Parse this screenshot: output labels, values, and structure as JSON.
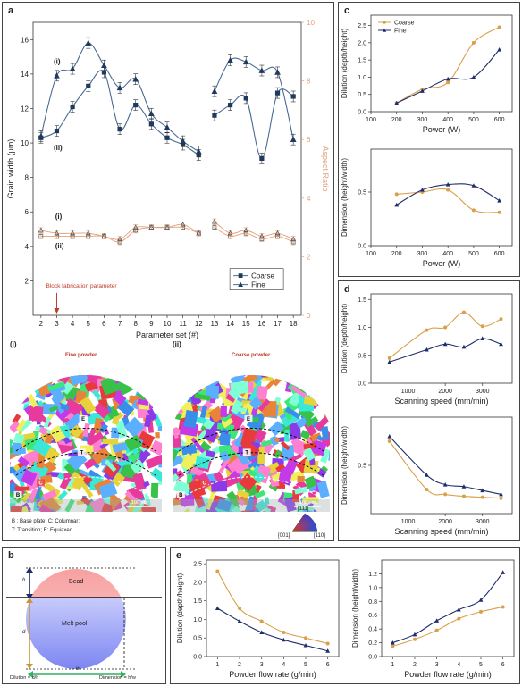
{
  "colors": {
    "coarse": "#d9a04a",
    "fine": "#1f2d6b",
    "right_axis": "#e0a07a",
    "arrow": "#c0392b",
    "powder_title": "#c0392b",
    "bead": "#f29a9a",
    "pool": "#8b93f0",
    "dim_arrow": "#2db35d",
    "depth_arrow": "#c9973a"
  },
  "panels": {
    "a": {
      "label": "a",
      "legend": [
        "Coarse",
        "Fine"
      ],
      "annotation": "Block fabrication parameter",
      "upper_labels": [
        "(i)",
        "(ii)"
      ],
      "lower_labels": [
        "(i)",
        "(ii)"
      ]
    },
    "ebsd": {
      "fine": {
        "label": "(i)",
        "title": "Fine powder",
        "scale": "100 μm",
        "zones": [
          "E",
          "T",
          "C",
          "B"
        ]
      },
      "coarse": {
        "label": "(ii)",
        "title": "Coarse powder",
        "scale": "100 μm",
        "zones": [
          "E",
          "T",
          "C",
          "B"
        ]
      },
      "caption_line1": "B : Base plate; C: Columnar;",
      "caption_line2": "T: Transition; E: Equiaxed",
      "ipf": [
        "[111]",
        "[001]",
        "[110]"
      ]
    },
    "b": {
      "label": "b",
      "bead": "Bead",
      "pool": "Melt pool",
      "h": "h",
      "d": "d",
      "w": "w",
      "dilution": "Dilution = d/h",
      "dimension": "Dimension = h/w"
    },
    "c": {
      "label": "c",
      "legend": [
        "Coarse",
        "Fine"
      ]
    },
    "d": {
      "label": "d"
    },
    "e": {
      "label": "e"
    }
  },
  "chart_data": [
    {
      "id": "a",
      "type": "line",
      "x": [
        2,
        3,
        4,
        5,
        6,
        7,
        8,
        9,
        10,
        11,
        12,
        13,
        14,
        15,
        16,
        17,
        18
      ],
      "xlabel": "Parameter set (#)",
      "ylabel": "Grain width (μm)",
      "y2label": "Aspect Ratio",
      "xlim": [
        1.5,
        18.5
      ],
      "ylim": [
        0,
        17
      ],
      "y2lim": [
        0,
        10
      ],
      "xticks": [
        "2",
        "3",
        "4",
        "5",
        "6",
        "7",
        "8",
        "9",
        "10",
        "11",
        "12",
        "13",
        "14",
        "15",
        "16",
        "17",
        "18"
      ],
      "yticks": [
        2,
        4,
        6,
        8,
        10,
        12,
        14,
        16
      ],
      "y2ticks": [
        0,
        2,
        4,
        6,
        8,
        10
      ],
      "series": [
        {
          "name": "Coarse",
          "axis": "left",
          "values": [
            10.3,
            10.7,
            12.1,
            13.3,
            14.1,
            10.8,
            12.2,
            11.1,
            10.3,
            9.9,
            9.3,
            11.6,
            12.2,
            12.6,
            9.1,
            12.9,
            12.7
          ]
        },
        {
          "name": "Fine",
          "axis": "left",
          "values": [
            10.4,
            13.9,
            14.3,
            15.8,
            14.5,
            13.2,
            13.7,
            11.7,
            10.9,
            10.1,
            9.5,
            13.0,
            14.8,
            14.7,
            14.2,
            14.1,
            10.2
          ]
        },
        {
          "name": "Coarse",
          "axis": "right",
          "values": [
            2.7,
            2.7,
            2.7,
            2.7,
            2.7,
            2.5,
            2.9,
            3.0,
            3.0,
            3.0,
            2.8,
            3.0,
            2.7,
            2.8,
            2.6,
            2.7,
            2.5
          ]
        },
        {
          "name": "Fine",
          "axis": "right",
          "values": [
            2.9,
            2.8,
            2.8,
            2.8,
            2.7,
            2.6,
            3.0,
            3.0,
            3.0,
            3.1,
            2.8,
            3.2,
            2.8,
            2.9,
            2.7,
            2.8,
            2.6
          ]
        }
      ],
      "annotation_x": 3
    },
    {
      "id": "c-top",
      "type": "line",
      "x": [
        200,
        300,
        400,
        500,
        600
      ],
      "xlabel": "Power (W)",
      "ylabel": "Dilution (depth/height)",
      "xlim": [
        100,
        650
      ],
      "ylim": [
        0,
        2.8
      ],
      "xticks": [
        "100",
        "200",
        "300",
        "400",
        "500",
        "600"
      ],
      "yticks": [
        0.0,
        0.5,
        1.0,
        1.5,
        2.0,
        2.5
      ],
      "series": [
        {
          "name": "Coarse",
          "values": [
            0.25,
            0.65,
            0.85,
            2.0,
            2.45
          ]
        },
        {
          "name": "Fine",
          "values": [
            0.25,
            0.6,
            0.95,
            1.0,
            1.8
          ]
        }
      ]
    },
    {
      "id": "c-bottom",
      "type": "line",
      "x": [
        200,
        300,
        400,
        500,
        600
      ],
      "xlabel": "Power (W)",
      "ylabel": "Dimension (height/width)",
      "xlim": [
        100,
        650
      ],
      "ylim": [
        0,
        0.9
      ],
      "xticks": [
        "100",
        "200",
        "300",
        "400",
        "500",
        "600"
      ],
      "yticks": [
        0.0,
        0.5
      ],
      "series": [
        {
          "name": "Coarse",
          "values": [
            0.48,
            0.5,
            0.52,
            0.33,
            0.31
          ]
        },
        {
          "name": "Fine",
          "values": [
            0.38,
            0.52,
            0.57,
            0.56,
            0.42
          ]
        }
      ]
    },
    {
      "id": "d-top",
      "type": "line",
      "x": [
        500,
        1500,
        2000,
        2500,
        3000,
        3500
      ],
      "xlabel": "Scanning speed (mm/min)",
      "ylabel": "Dilution (depth/height)",
      "xlim": [
        0,
        3800
      ],
      "ylim": [
        0,
        1.6
      ],
      "xticks": [
        "1000",
        "2000",
        "3000"
      ],
      "xtickvals": [
        1000,
        2000,
        3000
      ],
      "yticks": [
        0.0,
        0.5,
        1.0,
        1.5
      ],
      "series": [
        {
          "name": "Coarse",
          "values": [
            0.45,
            0.95,
            1.0,
            1.27,
            1.02,
            1.15
          ]
        },
        {
          "name": "Fine",
          "values": [
            0.38,
            0.6,
            0.7,
            0.65,
            0.8,
            0.7
          ]
        }
      ]
    },
    {
      "id": "d-bottom",
      "type": "line",
      "x": [
        500,
        1500,
        2000,
        2500,
        3000,
        3500
      ],
      "xlabel": "Scanning speed (mm/min)",
      "ylabel": "Dimension (height/width)",
      "xlim": [
        0,
        3800
      ],
      "ylim": [
        0,
        1.0
      ],
      "xticks": [
        "1000",
        "2000",
        "3000"
      ],
      "xtickvals": [
        1000,
        2000,
        3000
      ],
      "yticks": [
        0.5
      ],
      "series": [
        {
          "name": "Coarse",
          "values": [
            0.75,
            0.25,
            0.2,
            0.18,
            0.17,
            0.16
          ]
        },
        {
          "name": "Fine",
          "values": [
            0.8,
            0.4,
            0.3,
            0.28,
            0.24,
            0.2
          ]
        }
      ]
    },
    {
      "id": "e-left",
      "type": "line",
      "x": [
        1,
        2,
        3,
        4,
        5,
        6
      ],
      "xlabel": "Powder flow rate (g/min)",
      "ylabel": "Dilution (depth/height)",
      "xlim": [
        0.5,
        6.5
      ],
      "ylim": [
        0,
        2.6
      ],
      "xticks": [
        "1",
        "2",
        "3",
        "4",
        "5",
        "6"
      ],
      "yticks": [
        0.0,
        0.5,
        1.0,
        1.5,
        2.0,
        2.5
      ],
      "series": [
        {
          "name": "Coarse",
          "values": [
            2.3,
            1.3,
            0.95,
            0.65,
            0.5,
            0.35
          ]
        },
        {
          "name": "Fine",
          "values": [
            1.3,
            0.95,
            0.65,
            0.45,
            0.3,
            0.15
          ]
        }
      ]
    },
    {
      "id": "e-right",
      "type": "line",
      "x": [
        1,
        2,
        3,
        4,
        5,
        6
      ],
      "xlabel": "Powder flow rate (g/min)",
      "ylabel": "Dimension (height/width)",
      "xlim": [
        0.5,
        6.5
      ],
      "ylim": [
        0,
        1.4
      ],
      "xticks": [
        "1",
        "2",
        "3",
        "4",
        "5",
        "6"
      ],
      "yticks": [
        0.0,
        0.2,
        0.4,
        0.6,
        0.8,
        1.0,
        1.2
      ],
      "series": [
        {
          "name": "Coarse",
          "values": [
            0.15,
            0.25,
            0.38,
            0.55,
            0.65,
            0.72
          ]
        },
        {
          "name": "Fine",
          "values": [
            0.2,
            0.32,
            0.52,
            0.68,
            0.82,
            1.22
          ]
        }
      ]
    }
  ]
}
